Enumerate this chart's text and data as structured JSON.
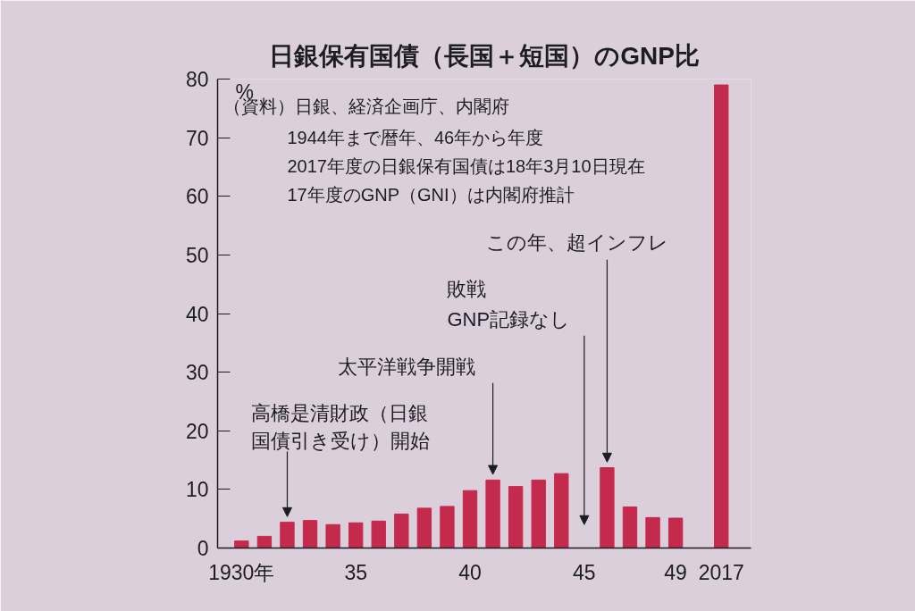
{
  "chart_data": {
    "type": "bar",
    "title": "日銀保有国債（長国＋短国）のGNP比",
    "ylabel": "%",
    "categories": [
      "1930年",
      null,
      null,
      null,
      null,
      "35",
      null,
      null,
      null,
      null,
      "40",
      null,
      null,
      null,
      null,
      "45",
      null,
      null,
      null,
      "49",
      "2017"
    ],
    "values": [
      1.2,
      2.0,
      4.4,
      4.7,
      4.0,
      4.3,
      4.6,
      5.8,
      6.8,
      7.1,
      9.8,
      11.6,
      10.5,
      11.6,
      12.7,
      null,
      13.7,
      7.0,
      5.2,
      5.1,
      79
    ],
    "color": "#c42a4c",
    "ylim": [
      0,
      80
    ],
    "yticks": [
      0,
      10,
      20,
      30,
      40,
      50,
      60,
      70,
      80
    ],
    "annotations": [
      "（資料）日銀、経済企画庁、内閣府",
      "1944年まで暦年、46年から年度",
      "2017年度の日銀保有国債は18年3月10日現在",
      "17年度のGNP（GNI）は内閣府推計",
      "高橋是清財政（日銀",
      "国債引き受け）開始",
      "太平洋戦争開戦",
      "敗戦",
      "GNP記録なし",
      "この年、超インフレ"
    ]
  }
}
